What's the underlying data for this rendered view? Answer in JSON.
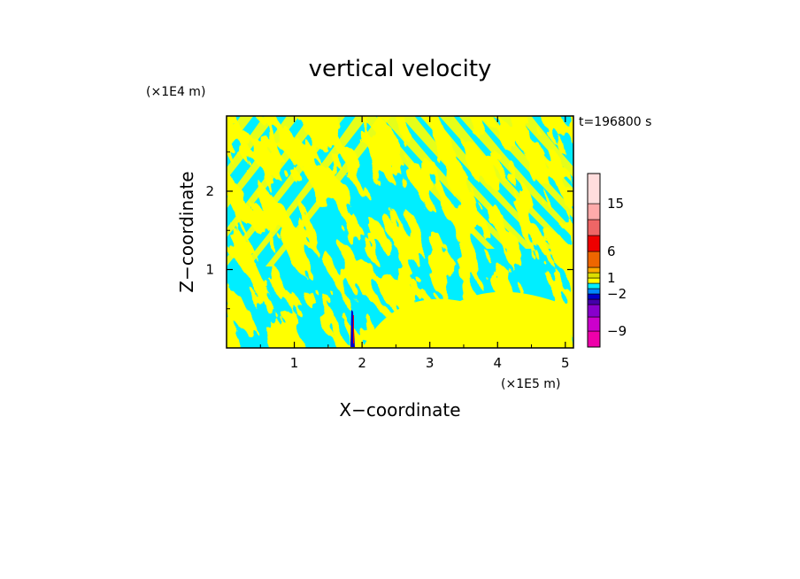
{
  "chart_data": {
    "type": "heatmap",
    "title": "vertical velocity",
    "xlabel": "X−coordinate",
    "ylabel": "Z−coordinate",
    "x_unit": "(×1E5 m)",
    "y_unit": "(×1E4 m)",
    "time_label": "t=196800 s",
    "xlim": [
      0,
      5.12
    ],
    "ylim": [
      0,
      2.96
    ],
    "x_ticks": [
      1,
      2,
      3,
      4,
      5
    ],
    "x_tick_labels": [
      "1",
      "2",
      "3",
      "4",
      "5"
    ],
    "y_ticks": [
      1,
      2
    ],
    "y_tick_labels": [
      "1",
      "2"
    ],
    "fill_colors": {
      "positive": "#ffff00",
      "negative": "#00eeff",
      "strong_negative": "#0000cc",
      "strong_positive": "#ff0000"
    },
    "colorbar": {
      "levels": [
        -12,
        -9,
        -6,
        -4,
        -3,
        -2,
        -1,
        0,
        1,
        2,
        3,
        6,
        9,
        12,
        15,
        18
      ],
      "colors": [
        "#ee00aa",
        "#cc00cc",
        "#8800cc",
        "#4400aa",
        "#0000cc",
        "#0088ff",
        "#00eeff",
        "#ffff00",
        "#dddd00",
        "#ffaa00",
        "#ee6600",
        "#ee0000",
        "#ee6666",
        "#ffaaaa",
        "#ffdddd"
      ],
      "tick_values": [
        -9,
        -2,
        1,
        6,
        15
      ],
      "tick_labels": [
        "−9",
        "−2",
        "1",
        "6",
        "15"
      ]
    }
  }
}
